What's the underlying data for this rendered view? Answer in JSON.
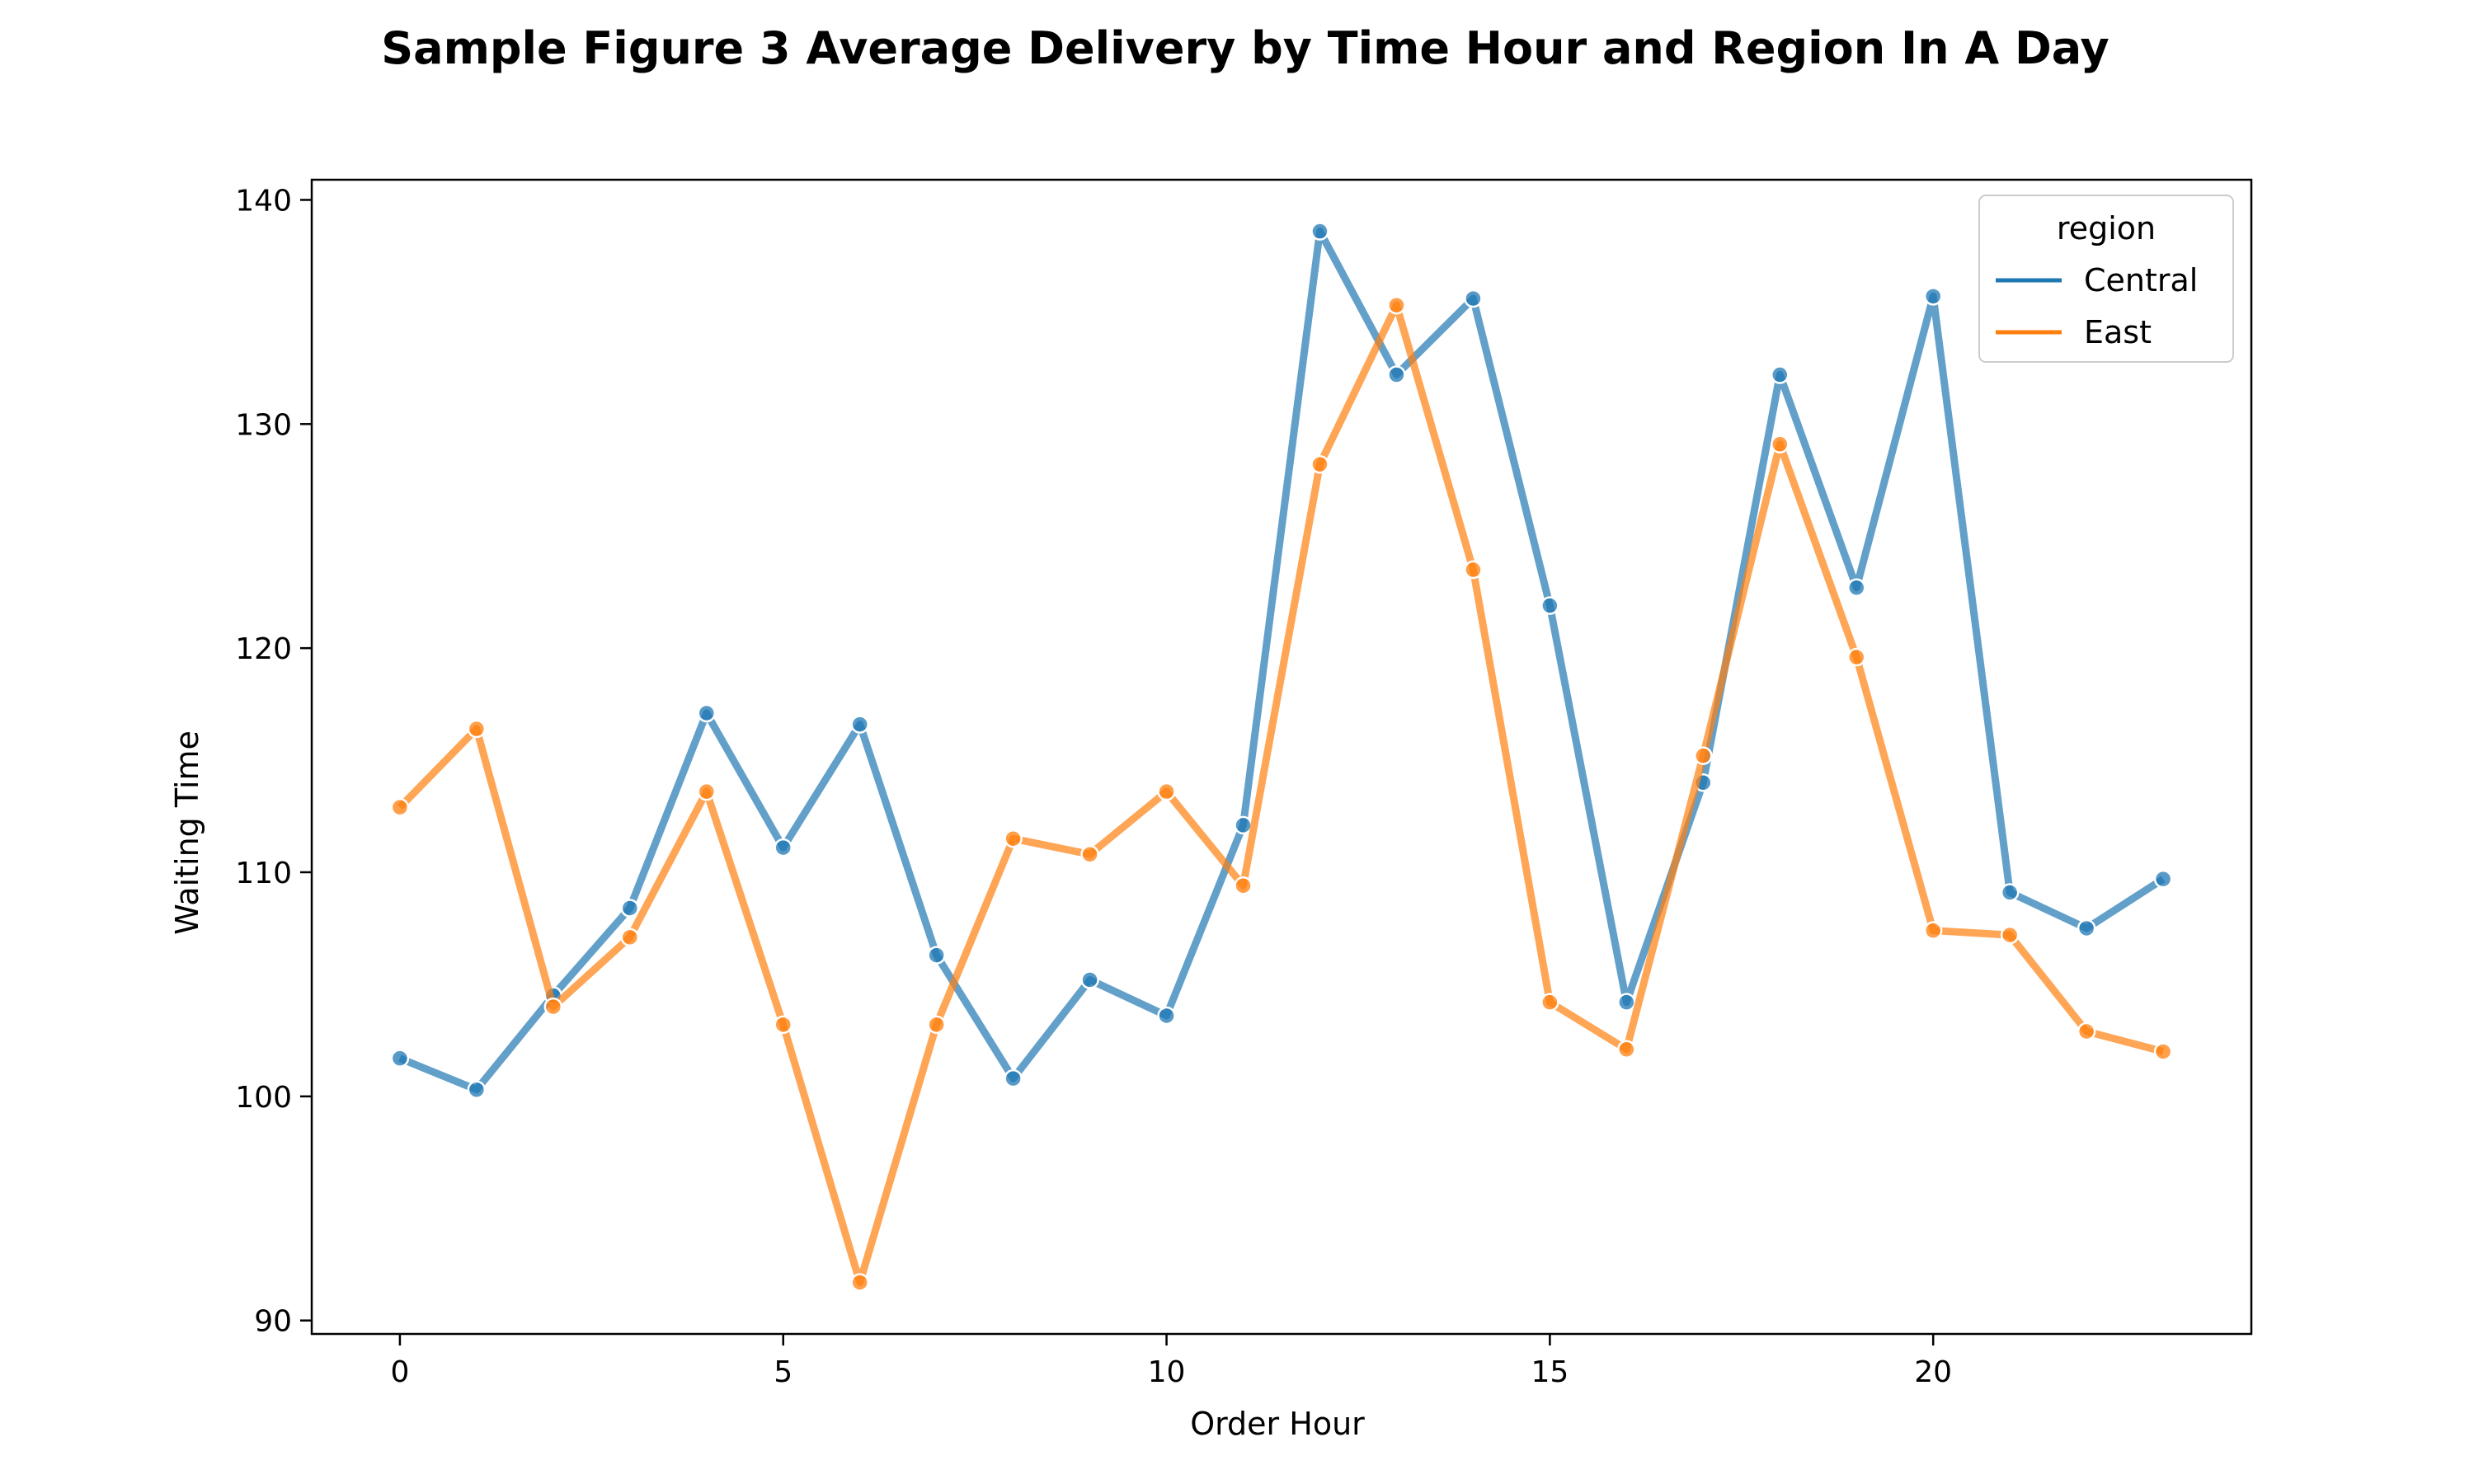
{
  "chart_data": {
    "type": "line",
    "title": "Sample Figure 3 Average Delivery by Time Hour and Region In A Day",
    "xlabel": "Order Hour",
    "ylabel": "Waiting Time",
    "xlim": [
      -1.15,
      24.15
    ],
    "ylim": [
      89.4,
      140.9
    ],
    "xticks": [
      0,
      5,
      10,
      15,
      20
    ],
    "yticks": [
      90,
      100,
      110,
      120,
      130,
      140
    ],
    "grid": false,
    "legend": {
      "title": "region",
      "placement": "top-right"
    },
    "x": [
      0,
      1,
      2,
      3,
      4,
      5,
      6,
      7,
      8,
      9,
      10,
      11,
      12,
      13,
      14,
      15,
      16,
      17,
      18,
      19,
      20,
      21,
      22,
      23
    ],
    "series": [
      {
        "name": "Central",
        "color": "#1f77b4",
        "values": [
          101.7,
          100.3,
          104.5,
          108.4,
          117.1,
          111.1,
          116.6,
          106.3,
          100.8,
          105.2,
          103.6,
          112.1,
          138.6,
          132.2,
          135.6,
          121.9,
          104.2,
          114.0,
          132.2,
          122.7,
          135.7,
          109.1,
          107.5,
          109.7
        ]
      },
      {
        "name": "East",
        "color": "#ff7f0e",
        "values": [
          112.9,
          116.4,
          104.0,
          107.1,
          113.6,
          103.2,
          91.7,
          103.2,
          111.5,
          110.8,
          113.6,
          109.4,
          128.2,
          135.3,
          123.5,
          104.2,
          102.1,
          115.2,
          129.1,
          119.6,
          107.4,
          107.2,
          102.9,
          102.0
        ]
      }
    ]
  }
}
